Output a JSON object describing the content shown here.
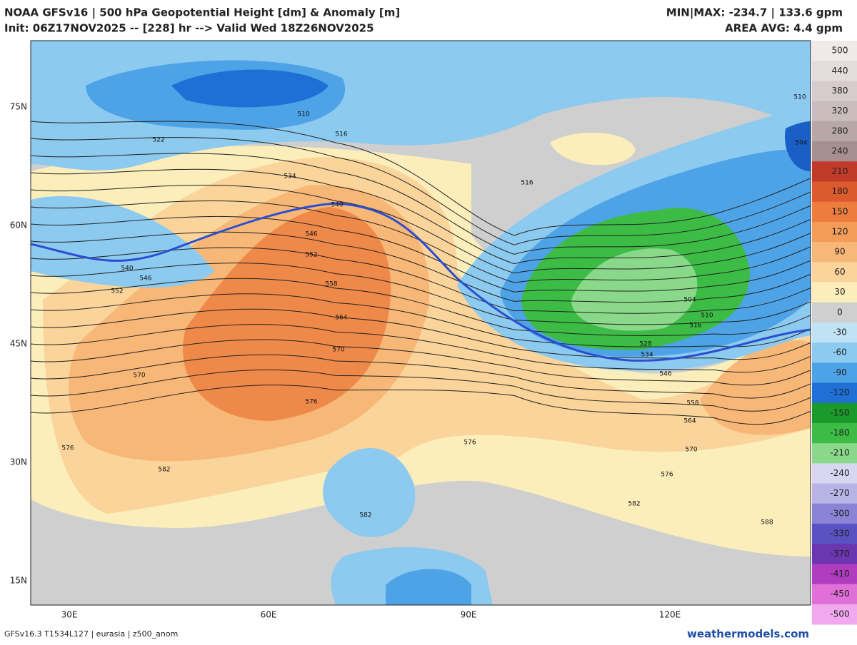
{
  "header": {
    "title": "NOAA GFSv16 |  500 hPa Geopotential Height [dm] & Anomaly [m]",
    "subtitle": "Init: 06Z17NOV2025 -- [228] hr --> Valid Wed 18Z26NOV2025",
    "minmax": "MIN|MAX: -234.7 | 133.6 gpm",
    "area_avg": "AREA AVG: 4.4 gpm"
  },
  "map": {
    "lat_labels": [
      "75N",
      "60N",
      "45N",
      "30N",
      "15N"
    ],
    "lon_labels": [
      "30E",
      "60E",
      "90E",
      "120E"
    ],
    "contour_labels": [
      510,
      516,
      522,
      534,
      540,
      546,
      552,
      558,
      564,
      570,
      576,
      582,
      576,
      516,
      504,
      510,
      516,
      528,
      534,
      546,
      558,
      564,
      570,
      576,
      582,
      588,
      582,
      576,
      540,
      546,
      552,
      570,
      510,
      504
    ]
  },
  "colorbar": {
    "ticks": [
      500,
      440,
      380,
      320,
      280,
      240,
      210,
      180,
      150,
      120,
      90,
      60,
      30,
      0,
      -30,
      -60,
      -90,
      -120,
      -150,
      -180,
      -210,
      -240,
      -270,
      -300,
      -330,
      -370,
      -410,
      -450,
      -500
    ],
    "colors": [
      "#efe9e9",
      "#e3dcdc",
      "#d6cccc",
      "#c9bcbc",
      "#b9a7a7",
      "#a88f8f",
      "#c23a2a",
      "#dc5a2e",
      "#ec7d3e",
      "#f39c5a",
      "#f7b777",
      "#fad49a",
      "#fbeebb",
      "#cfcfcf",
      "#bfe2f5",
      "#8ccaf0",
      "#4ea3e6",
      "#1f6fd6",
      "#1a9a2a",
      "#3cbb45",
      "#8ad98a",
      "#d8d6f0",
      "#b9b3e6",
      "#8a83d6",
      "#5a52c2",
      "#6b36b0",
      "#b03cc0",
      "#e070d8",
      "#f2a8ee"
    ]
  },
  "footer": {
    "left": "GFSv16.3 T1534L127 | eurasia | z500_anom",
    "right": "weathermodels.com"
  }
}
